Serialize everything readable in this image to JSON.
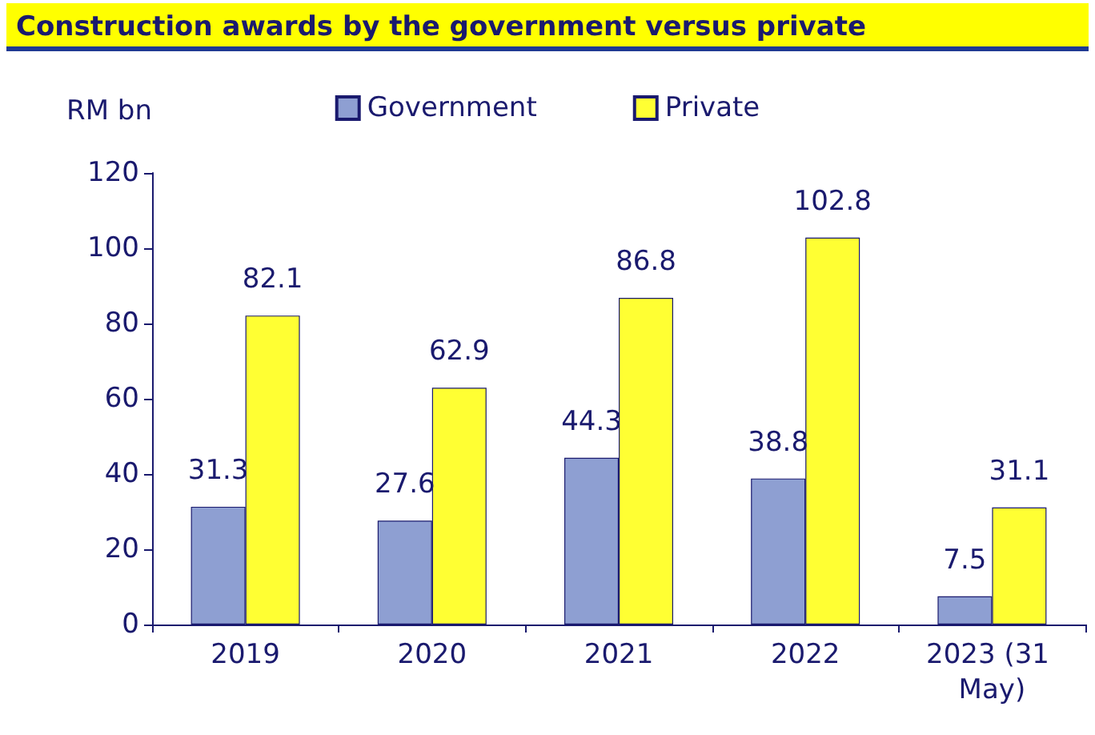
{
  "chart_data": {
    "type": "bar",
    "title": "Construction awards by the government versus private",
    "ylabel": "RM bn",
    "categories": [
      "2019",
      "2020",
      "2021",
      "2022",
      "2023 (31 May)"
    ],
    "series": [
      {
        "name": "Government",
        "color": "#8e9fd2",
        "values": [
          31.3,
          27.6,
          44.3,
          38.8,
          7.5
        ]
      },
      {
        "name": "Private",
        "color": "#ffff33",
        "values": [
          82.1,
          62.9,
          86.8,
          102.8,
          31.1
        ]
      }
    ],
    "ylim": [
      0,
      120
    ],
    "yticks": [
      0,
      20,
      40,
      60,
      80,
      100,
      120
    ],
    "grid": false,
    "legend": "top",
    "data_labels": true
  }
}
